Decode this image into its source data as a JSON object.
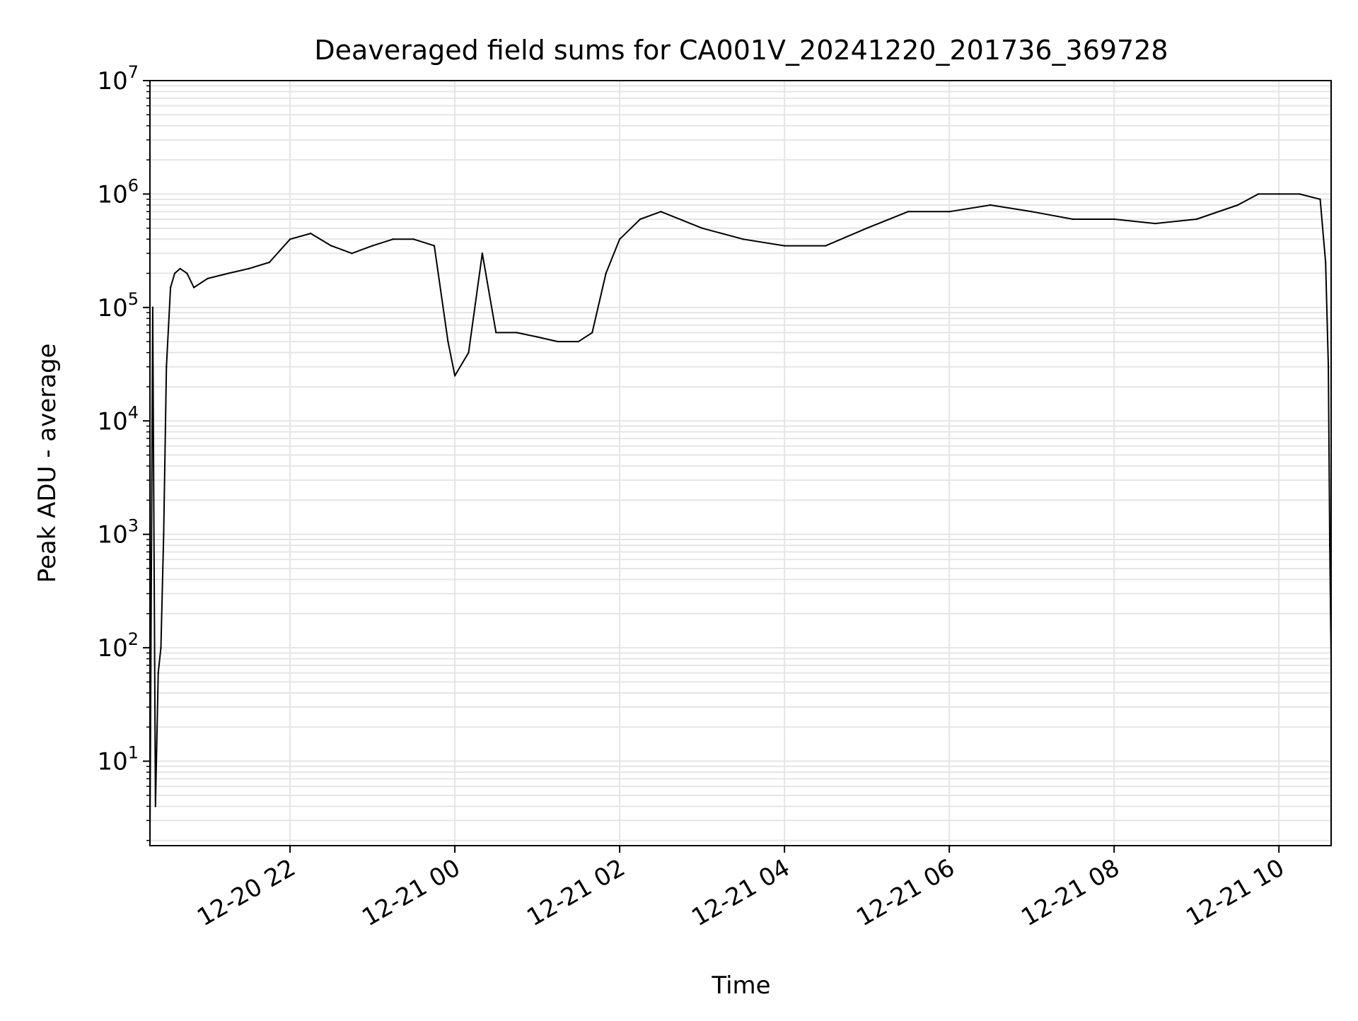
{
  "chart_data": {
    "type": "line",
    "title": "Deaveraged field sums for CA001V_20241220_201736_369728",
    "xlabel": "Time",
    "ylabel": "Peak ADU - average",
    "yscale": "log",
    "ylim": [
      1.8,
      10000000
    ],
    "xlim": [
      "2024-12-20 20:18",
      "2024-12-21 10:38"
    ],
    "grid": true,
    "line_color": "#000000",
    "grid_color": "#e5e5e5",
    "x_tick_labels": [
      {
        "value": "2024-12-20 22:00",
        "label": "12-20 22"
      },
      {
        "value": "2024-12-21 00:00",
        "label": "12-21 00"
      },
      {
        "value": "2024-12-21 02:00",
        "label": "12-21 02"
      },
      {
        "value": "2024-12-21 04:00",
        "label": "12-21 04"
      },
      {
        "value": "2024-12-21 06:00",
        "label": "12-21 06"
      },
      {
        "value": "2024-12-21 08:00",
        "label": "12-21 08"
      },
      {
        "value": "2024-12-21 10:00",
        "label": "12-21 10"
      }
    ],
    "y_tick_labels": [
      {
        "value": 10,
        "base": "10",
        "exp": "1"
      },
      {
        "value": 100,
        "base": "10",
        "exp": "2"
      },
      {
        "value": 1000,
        "base": "10",
        "exp": "3"
      },
      {
        "value": 10000,
        "base": "10",
        "exp": "4"
      },
      {
        "value": 100000,
        "base": "10",
        "exp": "5"
      },
      {
        "value": 1000000,
        "base": "10",
        "exp": "6"
      },
      {
        "value": 10000000,
        "base": "10",
        "exp": "7"
      }
    ],
    "series": [
      {
        "x": [
          "2024-12-20 20:18",
          "2024-12-20 20:20",
          "2024-12-20 20:22",
          "2024-12-20 20:24",
          "2024-12-20 20:26",
          "2024-12-20 20:28",
          "2024-12-20 20:30",
          "2024-12-20 20:33",
          "2024-12-20 20:36",
          "2024-12-20 20:40",
          "2024-12-20 20:45",
          "2024-12-20 20:50",
          "2024-12-20 21:00",
          "2024-12-20 21:15",
          "2024-12-20 21:30",
          "2024-12-20 21:45",
          "2024-12-20 22:00",
          "2024-12-20 22:15",
          "2024-12-20 22:30",
          "2024-12-20 22:45",
          "2024-12-20 23:00",
          "2024-12-20 23:15",
          "2024-12-20 23:30",
          "2024-12-20 23:45",
          "2024-12-20 23:55",
          "2024-12-21 00:00",
          "2024-12-21 00:10",
          "2024-12-21 00:20",
          "2024-12-21 00:30",
          "2024-12-21 00:45",
          "2024-12-21 01:00",
          "2024-12-21 01:15",
          "2024-12-21 01:30",
          "2024-12-21 01:40",
          "2024-12-21 01:50",
          "2024-12-21 02:00",
          "2024-12-21 02:15",
          "2024-12-21 02:30",
          "2024-12-21 03:00",
          "2024-12-21 03:30",
          "2024-12-21 04:00",
          "2024-12-21 04:30",
          "2024-12-21 05:00",
          "2024-12-21 05:30",
          "2024-12-21 06:00",
          "2024-12-21 06:30",
          "2024-12-21 07:00",
          "2024-12-21 07:30",
          "2024-12-21 08:00",
          "2024-12-21 08:30",
          "2024-12-21 09:00",
          "2024-12-21 09:30",
          "2024-12-21 09:45",
          "2024-12-21 10:00",
          "2024-12-21 10:15",
          "2024-12-21 10:30",
          "2024-12-21 10:34",
          "2024-12-21 10:36",
          "2024-12-21 10:37",
          "2024-12-21 10:38"
        ],
        "values": [
          2.0,
          100000,
          4,
          60,
          100,
          1000,
          30000,
          150000,
          200000,
          220000,
          200000,
          150000,
          180000,
          200000,
          220000,
          250000,
          400000,
          450000,
          350000,
          300000,
          350000,
          400000,
          400000,
          350000,
          50000,
          25000,
          40000,
          300000,
          60000,
          60000,
          55000,
          50000,
          50000,
          60000,
          200000,
          400000,
          600000,
          700000,
          500000,
          400000,
          350000,
          350000,
          500000,
          700000,
          700000,
          800000,
          700000,
          600000,
          600000,
          550000,
          600000,
          800000,
          1000000,
          1000000,
          1000000,
          900000,
          250000,
          30000,
          800,
          80
        ]
      }
    ]
  }
}
